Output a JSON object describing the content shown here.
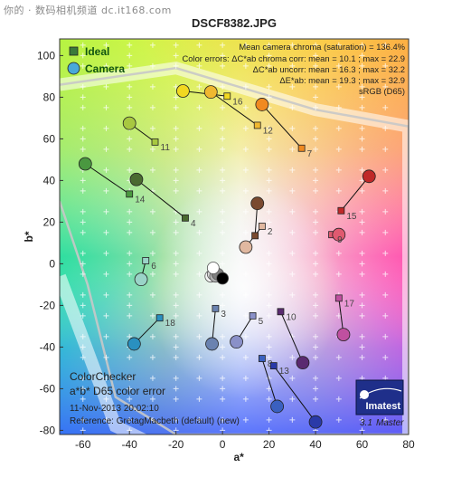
{
  "watermark": "你的 · 数码相机频道 dc.it168.com",
  "chart_data": {
    "type": "scatter",
    "title": "DSCF8382.JPG",
    "xlabel": "a*",
    "ylabel": "b*",
    "xlim": [
      -70,
      80
    ],
    "ylim": [
      -82,
      108
    ],
    "xticks": [
      -60,
      -40,
      -20,
      0,
      20,
      40,
      60,
      80
    ],
    "yticks": [
      -80,
      -60,
      -40,
      -20,
      0,
      20,
      40,
      60,
      80,
      100
    ],
    "legend": {
      "placement": "top-left",
      "ideal_label": "Ideal",
      "camera_label": "Camera"
    },
    "info_lines": [
      "Mean camera chroma (saturation) = 136.4%",
      "Color errors:  ΔC*ab chroma corr:  mean = 10.1 ;  max = 22.9",
      "ΔC*ab uncorr:  mean = 16.3 ;  max = 32.2",
      "ΔE*ab:  mean = 19.3 ;  max = 32.9",
      "sRGB (D65)"
    ],
    "caption": {
      "name": "ColorChecker",
      "subtitle": "a*b* D65 color error",
      "date": "11-Nov-2013 20:02:10",
      "reference": "Reference: GretagMacbeth (default) (new)"
    },
    "logo": {
      "brand": "Imatest",
      "version": "3.1",
      "edition": "Master"
    },
    "patches": [
      {
        "id": 1,
        "label": "",
        "ideal": [
          14,
          13.5
        ],
        "camera": [
          15,
          29
        ],
        "color": "#7a4a30"
      },
      {
        "id": 2,
        "label": "2",
        "ideal": [
          17,
          18
        ],
        "camera": [
          10,
          8
        ],
        "color": "#e0b8a0"
      },
      {
        "id": 3,
        "label": "3",
        "ideal": [
          -3,
          -21.5
        ],
        "camera": [
          -4.5,
          -38.5
        ],
        "color": "#6a82b0"
      },
      {
        "id": 4,
        "label": "4",
        "ideal": [
          -16,
          22
        ],
        "camera": [
          -37,
          40.5
        ],
        "color": "#4a6a30"
      },
      {
        "id": 5,
        "label": "5",
        "ideal": [
          13,
          -25
        ],
        "camera": [
          6,
          -37.5
        ],
        "color": "#8a90c8"
      },
      {
        "id": 6,
        "label": "6",
        "ideal": [
          -33,
          1.5
        ],
        "camera": [
          -35,
          -7.5
        ],
        "color": "#9ad4c8"
      },
      {
        "id": 7,
        "label": "7",
        "ideal": [
          34,
          55.5
        ],
        "camera": [
          17,
          76.5
        ],
        "color": "#f08a20"
      },
      {
        "id": 8,
        "label": "8",
        "ideal": [
          17,
          -45.5
        ],
        "camera": [
          23.5,
          -68.5
        ],
        "color": "#3a60c0"
      },
      {
        "id": 9,
        "label": "9",
        "ideal": [
          47,
          14
        ],
        "camera": [
          50,
          14
        ],
        "color": "#e05a70"
      },
      {
        "id": 10,
        "label": "10",
        "ideal": [
          25,
          -23
        ],
        "camera": [
          34.5,
          -47.5
        ],
        "color": "#5a2a70"
      },
      {
        "id": 11,
        "label": "11",
        "ideal": [
          -29,
          58.5
        ],
        "camera": [
          -40,
          67.5
        ],
        "color": "#a8c840"
      },
      {
        "id": 12,
        "label": "12",
        "ideal": [
          15,
          66.5
        ],
        "camera": [
          -5,
          82.5
        ],
        "color": "#f0b830"
      },
      {
        "id": 13,
        "label": "13",
        "ideal": [
          22,
          -49
        ],
        "camera": [
          40,
          -76
        ],
        "color": "#2a3aa8"
      },
      {
        "id": 14,
        "label": "14",
        "ideal": [
          -40,
          33.5
        ],
        "camera": [
          -59,
          48
        ],
        "color": "#4a9840"
      },
      {
        "id": 15,
        "label": "15",
        "ideal": [
          51,
          25.5
        ],
        "camera": [
          63,
          42
        ],
        "color": "#c02828"
      },
      {
        "id": 16,
        "label": "16",
        "ideal": [
          2,
          80.5
        ],
        "camera": [
          -17,
          83
        ],
        "color": "#f2d820"
      },
      {
        "id": 17,
        "label": "17",
        "ideal": [
          50,
          -16.5
        ],
        "camera": [
          52,
          -34
        ],
        "color": "#c050a0"
      },
      {
        "id": 18,
        "label": "18",
        "ideal": [
          -27,
          -26
        ],
        "camera": [
          -38,
          -38.5
        ],
        "color": "#2a90c0"
      }
    ],
    "neutral_patches": [
      {
        "camera": [
          -5,
          -6
        ],
        "color": "#f5f5f5"
      },
      {
        "camera": [
          -4,
          -5
        ],
        "color": "#d8d8d8"
      },
      {
        "camera": [
          -3,
          -6
        ],
        "color": "#b0b0b0"
      },
      {
        "camera": [
          -2,
          -5
        ],
        "color": "#808080"
      },
      {
        "camera": [
          0,
          -7
        ],
        "color": "#000000"
      },
      {
        "camera": [
          -4,
          -2
        ],
        "color": "#ffffff"
      }
    ],
    "gamut_boundary": [
      [
        -70,
        -6
      ],
      [
        -46,
        -78
      ],
      [
        -20,
        -92
      ],
      [
        80,
        -92
      ],
      [
        80,
        66
      ],
      [
        40,
        74
      ],
      [
        -20,
        94
      ],
      [
        -70,
        86
      ]
    ],
    "gamut_inner": [
      [
        -70,
        30
      ],
      [
        -58,
        -10
      ],
      [
        -46,
        -64
      ],
      [
        -20,
        -82
      ],
      [
        80,
        -82
      ],
      [
        80,
        66
      ],
      [
        40,
        74
      ],
      [
        -20,
        94
      ],
      [
        -70,
        86
      ]
    ]
  }
}
